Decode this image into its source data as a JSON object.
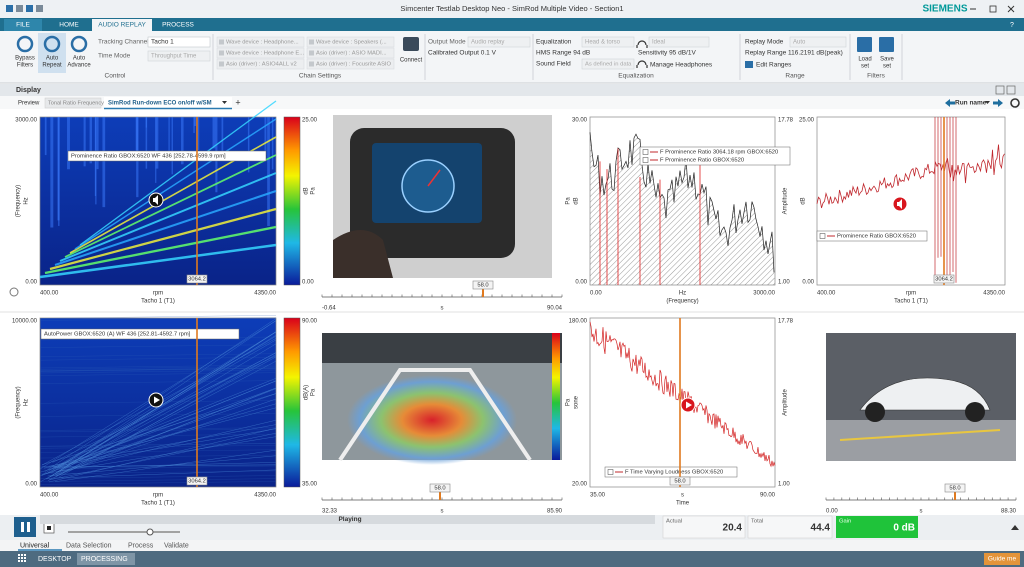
{
  "window": {
    "title": "Simcenter Testlab Desktop Neo - SimRod Multiple Video - Section1",
    "brand": "SIEMENS",
    "help": "?"
  },
  "menu_tabs": [
    "FILE",
    "HOME",
    "AUDIO REPLAY",
    "PROCESS"
  ],
  "ribbon": {
    "control": {
      "buttons": [
        [
          "Bypass",
          "Filters"
        ],
        [
          "Auto",
          "Repeat"
        ],
        [
          "Auto",
          "Advance"
        ]
      ],
      "tracking_label": "Tracking Channel",
      "tracking_value": "Tacho 1",
      "time_mode_label": "Time Mode",
      "time_mode_value": "Throughput Time",
      "group": "Control"
    },
    "chain": {
      "devices": [
        "Wave device : Headphone...",
        "Wave device : Speakers (...",
        "Wave device : Headphone E...",
        "Asio (driver) : ASIO MADI...",
        "Asio (driver) : ASIO4ALL v2",
        "Asio (driver) : Focusrite ASIO"
      ],
      "connect": "Connect",
      "group": "Chain Settings"
    },
    "output": {
      "mode_label": "Output Mode",
      "mode_value": "Audio replay",
      "calibrated": "Calibrated Output  0.1 V"
    },
    "equalization": {
      "eq_label": "Equalization",
      "eq_value": "Head & torso",
      "hms": "HMS Range  94 dB",
      "sound_field_label": "Sound Field",
      "sound_field_value": "As defined in data",
      "headphone": "Ideal",
      "sensitivity": "Sensitivity  95 dB/1V",
      "manage": "Manage Headphones",
      "group": "Equalization"
    },
    "range": {
      "mode_label": "Replay Mode",
      "mode_value": "Auto",
      "replay_range": "Replay Range  116.2191 dB(peak)",
      "edit": "Edit Ranges",
      "group": "Range"
    },
    "filters": {
      "buttons": [
        [
          "Load",
          "set"
        ],
        [
          "Save",
          "set"
        ]
      ],
      "group": "Filters"
    }
  },
  "display": {
    "title": "Display",
    "tabs": [
      "Preview",
      "Tonal Ratio Frequency",
      "SimRod Run-down ECO on/off w/SM"
    ],
    "add": "+",
    "run_name": "Run name"
  },
  "panels": [
    {
      "y_top": "3000.00",
      "y_bottom": "0.00",
      "y_unit": "Hz",
      "y_name": "(Frequency)",
      "x_left": "400.00",
      "x_unit": "rpm",
      "x_right": "4350.00",
      "x_name": "Tacho 1 (T1)",
      "scale_top": "25.00",
      "scale_unit": "dB",
      "scale_ref": "Pa",
      "scale_bottom": "0.00",
      "annotation": "Prominence Ratio GBOX:6520 WF 436 [252.78-4599.9 rpm]",
      "cursor": "3064.2"
    },
    {
      "t_left": "-0.64",
      "t_unit": "s",
      "t_right": "90.04",
      "cursor": "58.0"
    },
    {
      "y_top": "30.00",
      "y_bottom": "0.00",
      "y_unit": "dB",
      "y_name": "Pa",
      "y2_top": "17.78",
      "y2_bottom": "1.00",
      "y2_name": "Amplitude",
      "x_left": "0.00",
      "x_unit": "Hz",
      "x_right": "3000.00",
      "x_name": "(Frequency)",
      "legend": [
        "F   Prominence Ratio 3064.18 rpm GBOX:6520",
        "F   Prominence Ratio GBOX:6520"
      ]
    },
    {
      "y_top": "25.00",
      "y_bottom": "0.00",
      "y_unit": "dB",
      "x_left": "400.00",
      "x_unit": "rpm",
      "x_right": "4350.00",
      "x_name": "Tacho 1 (T1)",
      "legend": [
        "Prominence Ratio GBOX:6520"
      ],
      "cursor": "3064.2"
    },
    {
      "y_top": "10000.00",
      "y_bottom": "0.00",
      "y_unit": "Hz",
      "y_name": "(Frequency)",
      "x_left": "400.00",
      "x_unit": "rpm",
      "x_right": "4350.00",
      "x_name": "Tacho 1 (T1)",
      "scale_top": "90.00",
      "scale_unit": "dB(A)",
      "scale_ref": "Pa",
      "scale_bottom": "35.00",
      "annotation": "AutoPower GBOX:6520 (A) WF 436 [252.81-4592.7 rpm]",
      "cursor": "3064.2"
    },
    {
      "t_left": "32.33",
      "t_unit": "s",
      "t_right": "85.90",
      "cursor": "58.0"
    },
    {
      "y_top": "180.00",
      "y_bottom": "20.00",
      "y_unit": "sone",
      "y_name": "Pa",
      "y2_top": "17.78",
      "y2_bottom": "1.00",
      "y2_name": "Amplitude",
      "x_left": "35.00",
      "x_unit": "s",
      "x_right": "90.00",
      "x_name": "Time",
      "legend": [
        "F   Time Varying Loudness GBOX:6520"
      ],
      "cursor": "58.0"
    },
    {
      "t_left": "0.00",
      "t_unit": "s",
      "t_right": "88.30",
      "cursor": "58.0"
    }
  ],
  "playback": {
    "status": "Playing",
    "actual_label": "Actual",
    "actual": "20.4",
    "total_label": "Total",
    "total": "44.4",
    "gain_label": "Gain",
    "gain": "0 dB"
  },
  "bottom_tabs": [
    "Universal",
    "Data Selection",
    "Process",
    "Validate"
  ],
  "status_bar": {
    "desktop": "DESKTOP",
    "processing": "PROCESSING",
    "guide": "Guide me"
  }
}
